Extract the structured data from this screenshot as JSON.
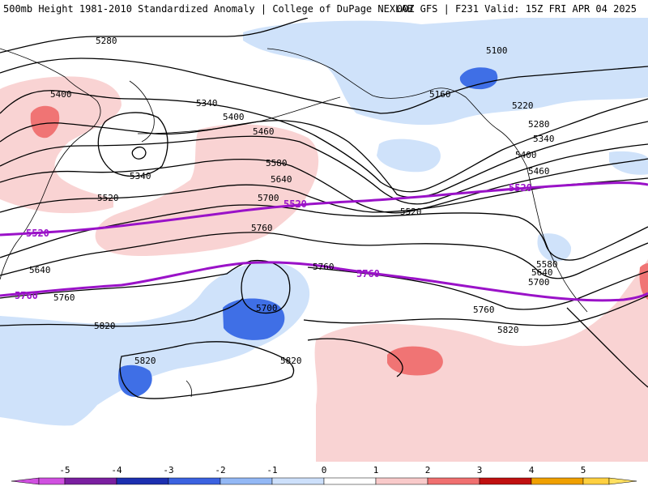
{
  "header": {
    "title_left": "500mb Height 1981-2010 Standardized Anomaly | College of DuPage NEXLAB",
    "title_right": "00Z GFS | F231 Valid: 15Z FRI APR 04 2025"
  },
  "contour_labels": {
    "c5280": "5280",
    "c5100": "5100",
    "c5400a": "5400",
    "c5340a": "5340",
    "c5160": "5160",
    "c5220": "5220",
    "c5400b": "5400",
    "c5460a": "5460",
    "c5280b": "5280",
    "c5340b": "5340",
    "c5580a": "5580",
    "c5340c": "5340",
    "c5400c": "5400",
    "c5640a": "5640",
    "c5460b": "5460",
    "c5520a": "5520",
    "c5700a": "5700",
    "c5520b": "5520",
    "c5760a": "5760",
    "c5580b": "5580",
    "c5640b": "5640",
    "c5640c": "5640",
    "c5760b": "5760",
    "c5700b": "5700",
    "c5700c": "5700",
    "c5760c": "5760",
    "c5820a": "5820",
    "c5760d": "5760",
    "c5820b": "5820",
    "c5820c": "5820",
    "c5820d": "5820"
  },
  "highlight_labels": {
    "p5520a": "5520",
    "p5520b": "5520",
    "p5520c": "5520",
    "p5760a": "5760",
    "p5760b": "5760"
  },
  "colorbar": {
    "ticks": [
      "-5",
      "-4",
      "-3",
      "-2",
      "-1",
      "0",
      "1",
      "2",
      "3",
      "4",
      "5"
    ],
    "colors": [
      "#7a1fa0",
      "#1c2fb0",
      "#3b62e0",
      "#93b8f5",
      "#cde0fb",
      "#ffffff",
      "#ffffff",
      "#f9caca",
      "#f07070",
      "#c01010",
      "#f0a000",
      "#ffd040"
    ],
    "end_colors": [
      "#d050e0",
      "#ffe060"
    ]
  },
  "colors": {
    "neg1": "#cfe2fa",
    "neg2": "#3f6fe6",
    "pos1": "#f9d3d3",
    "pos2": "#f07474",
    "highlight_contour": "#9a12c8",
    "contour": "#000000"
  }
}
